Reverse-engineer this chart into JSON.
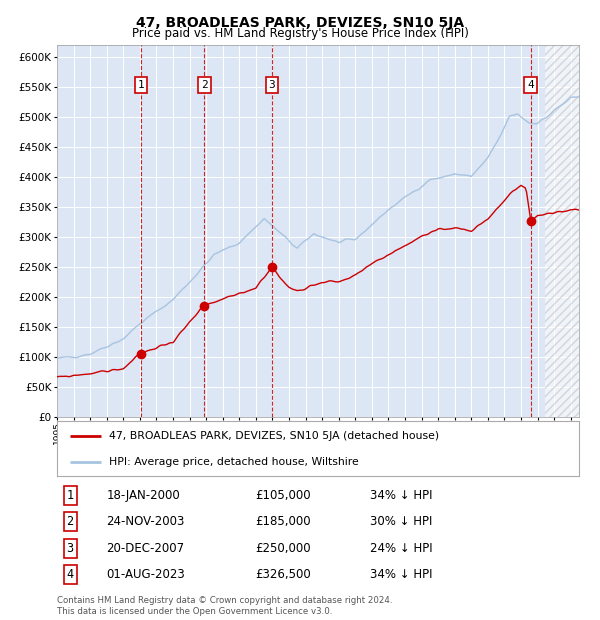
{
  "title": "47, BROADLEAS PARK, DEVIZES, SN10 5JA",
  "subtitle": "Price paid vs. HM Land Registry's House Price Index (HPI)",
  "xlim_start": 1995.0,
  "xlim_end": 2026.5,
  "ylim_min": 0,
  "ylim_max": 620000,
  "yticks": [
    0,
    50000,
    100000,
    150000,
    200000,
    250000,
    300000,
    350000,
    400000,
    450000,
    500000,
    550000,
    600000
  ],
  "plot_bg_color": "#dce6f5",
  "hpi_color": "#a8c4e0",
  "red_color": "#cc0000",
  "transactions": [
    {
      "num": 1,
      "date_label": "18-JAN-2000",
      "date_x": 2000.05,
      "price": 105000,
      "label": "£105,000",
      "pct": "34% ↓ HPI"
    },
    {
      "num": 2,
      "date_label": "24-NOV-2003",
      "date_x": 2003.9,
      "price": 185000,
      "label": "£185,000",
      "pct": "30% ↓ HPI"
    },
    {
      "num": 3,
      "date_label": "20-DEC-2007",
      "date_x": 2007.97,
      "price": 250000,
      "label": "£250,000",
      "pct": "24% ↓ HPI"
    },
    {
      "num": 4,
      "date_label": "01-AUG-2023",
      "date_x": 2023.58,
      "price": 326500,
      "label": "£326,500",
      "pct": "34% ↓ HPI"
    }
  ],
  "legend_line1": "47, BROADLEAS PARK, DEVIZES, SN10 5JA (detached house)",
  "legend_line2": "HPI: Average price, detached house, Wiltshire",
  "footer": "Contains HM Land Registry data © Crown copyright and database right 2024.\nThis data is licensed under the Open Government Licence v3.0.",
  "xticks": [
    1995,
    1996,
    1997,
    1998,
    1999,
    2000,
    2001,
    2002,
    2003,
    2004,
    2005,
    2006,
    2007,
    2008,
    2009,
    2010,
    2011,
    2012,
    2013,
    2014,
    2015,
    2016,
    2017,
    2018,
    2019,
    2020,
    2021,
    2022,
    2023,
    2024,
    2025,
    2026
  ],
  "hpi_anchors_x": [
    1995.0,
    1997.0,
    1999.0,
    2000.0,
    2002.0,
    2003.5,
    2004.5,
    2006.0,
    2007.5,
    2008.5,
    2009.5,
    2010.5,
    2011.5,
    2012.0,
    2013.0,
    2014.0,
    2015.0,
    2016.5,
    2017.5,
    2018.5,
    2019.0,
    2020.0,
    2021.0,
    2021.8,
    2022.3,
    2022.8,
    2023.0,
    2023.5,
    2024.0,
    2024.5,
    2025.0,
    2025.5,
    2026.0
  ],
  "hpi_anchors_y": [
    96000,
    105000,
    130000,
    155000,
    195000,
    240000,
    270000,
    290000,
    330000,
    305000,
    280000,
    305000,
    295000,
    290000,
    295000,
    320000,
    345000,
    375000,
    395000,
    400000,
    405000,
    400000,
    430000,
    470000,
    500000,
    505000,
    500000,
    490000,
    490000,
    498000,
    510000,
    520000,
    530000
  ],
  "red_anchors_x": [
    1995.0,
    1997.0,
    1999.0,
    2000.05,
    2001.0,
    2002.0,
    2003.9,
    2005.0,
    2006.0,
    2007.0,
    2007.97,
    2008.5,
    2009.0,
    2009.5,
    2010.0,
    2011.0,
    2012.0,
    2013.0,
    2014.0,
    2015.0,
    2016.0,
    2017.0,
    2018.0,
    2019.0,
    2020.0,
    2021.0,
    2021.5,
    2022.0,
    2022.5,
    2023.0,
    2023.3,
    2023.58,
    2023.8,
    2024.0,
    2024.5,
    2025.0,
    2025.5,
    2026.0
  ],
  "red_anchors_y": [
    65000,
    72000,
    80000,
    105000,
    115000,
    125000,
    185000,
    195000,
    205000,
    215000,
    250000,
    230000,
    215000,
    210000,
    215000,
    225000,
    225000,
    235000,
    255000,
    270000,
    285000,
    300000,
    310000,
    315000,
    310000,
    330000,
    345000,
    360000,
    375000,
    385000,
    380000,
    326500,
    330000,
    335000,
    338000,
    340000,
    342000,
    345000
  ],
  "hatch_start": 2024.42
}
